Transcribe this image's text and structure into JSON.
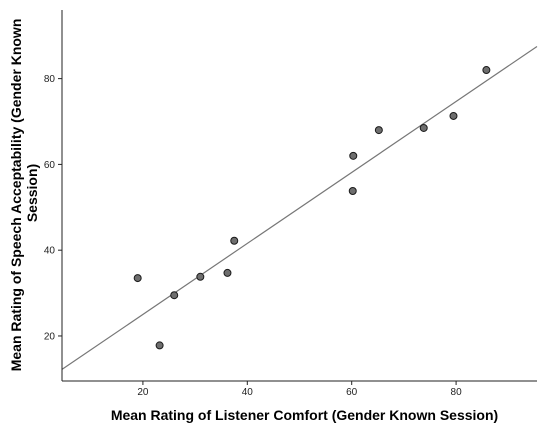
{
  "chart_data": {
    "type": "scatter",
    "title": "",
    "xlabel": "Mean Rating of Listener Comfort (Gender Known Session)",
    "ylabel": "Mean Rating of Speech Acceptability (Gender Known Session)",
    "ylabel_lines": [
      "Mean Rating of Speech Acceptability (Gender Known",
      "Session)"
    ],
    "xlim": [
      4.5,
      95.5
    ],
    "ylim": [
      9.5,
      96
    ],
    "x_ticks": [
      20,
      40,
      60,
      80
    ],
    "y_ticks": [
      20,
      40,
      60,
      80
    ],
    "grid": false,
    "points": [
      {
        "x": 19.0,
        "y": 33.5
      },
      {
        "x": 23.2,
        "y": 17.8
      },
      {
        "x": 26.0,
        "y": 29.5
      },
      {
        "x": 31.0,
        "y": 33.8
      },
      {
        "x": 36.2,
        "y": 34.7
      },
      {
        "x": 37.5,
        "y": 42.2
      },
      {
        "x": 60.2,
        "y": 53.8
      },
      {
        "x": 60.3,
        "y": 62.0
      },
      {
        "x": 65.2,
        "y": 68.0
      },
      {
        "x": 73.8,
        "y": 68.5
      },
      {
        "x": 79.5,
        "y": 71.3
      },
      {
        "x": 85.8,
        "y": 82.0
      }
    ],
    "fit_line": {
      "x": [
        4.5,
        95.5
      ],
      "y": [
        12.2,
        87.5
      ]
    },
    "colors": {
      "point_fill": "#6e6e6e",
      "point_stroke": "#1a1a1a",
      "line": "#777777",
      "axis": "#222222"
    }
  }
}
